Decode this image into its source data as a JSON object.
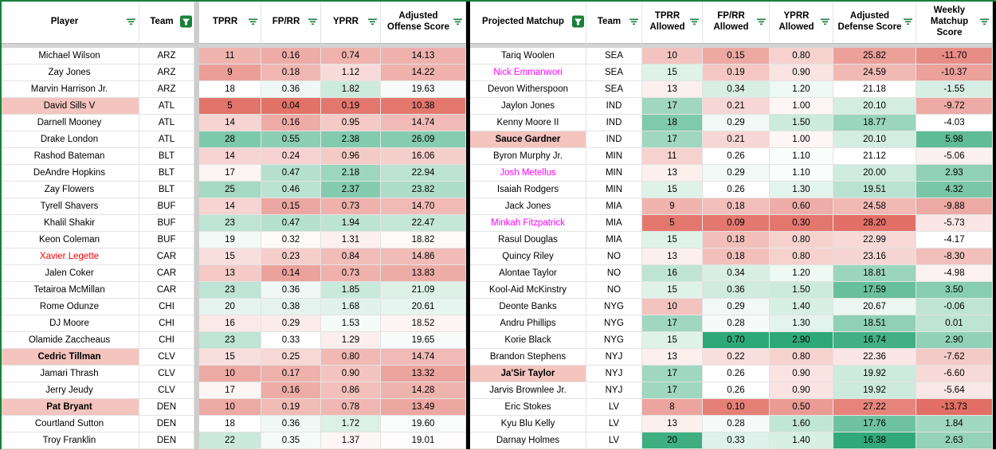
{
  "sheet": {
    "colors": {
      "neg": "#e0685e",
      "pos": "#2fa878",
      "mid": "#ffffff",
      "highlight": "#f4c4bf",
      "filter_green": "#188038",
      "grid": "#e3e3e3",
      "divider_gray": "#cdcdcd",
      "border_black": "#000000",
      "red_text": "#ff0000",
      "magenta_text": "#ff00ff"
    },
    "left_table": {
      "headers": [
        {
          "label": "Player",
          "filter": "inactive"
        },
        {
          "label": "Team",
          "filter": "active"
        },
        {
          "label": "TPRR",
          "filter": "inactive"
        },
        {
          "label": "FP/RR",
          "filter": "inactive"
        },
        {
          "label": "YPRR",
          "filter": "inactive"
        },
        {
          "label": "Adjusted Offense Score",
          "filter": "inactive"
        }
      ],
      "scales": [
        {
          "min": 4,
          "mid": 18,
          "max": 34
        },
        {
          "min": 0.02,
          "mid": 0.33,
          "max": 0.73
        },
        {
          "min": 0.05,
          "mid": 1.45,
          "max": 3.0
        },
        {
          "min": 9.4,
          "mid": 19.2,
          "max": 31
        }
      ],
      "rows": [
        {
          "name": "Michael Wilson",
          "team": "ARZ",
          "vals": [
            "11",
            "0.16",
            "0.74",
            "14.13"
          ]
        },
        {
          "name": "Zay Jones",
          "team": "ARZ",
          "vals": [
            "9",
            "0.18",
            "1.12",
            "14.22"
          ]
        },
        {
          "name": "Marvin Harrison Jr.",
          "team": "ARZ",
          "vals": [
            "18",
            "0.36",
            "1.82",
            "19.63"
          ]
        },
        {
          "name": "David Sills V",
          "team": "ATL",
          "vals": [
            "5",
            "0.04",
            "0.19",
            "10.38"
          ],
          "highlight": true
        },
        {
          "name": "Darnell Mooney",
          "team": "ATL",
          "vals": [
            "14",
            "0.16",
            "0.95",
            "14.74"
          ]
        },
        {
          "name": "Drake London",
          "team": "ATL",
          "vals": [
            "28",
            "0.55",
            "2.38",
            "26.09"
          ]
        },
        {
          "name": "Rashod Bateman",
          "team": "BLT",
          "vals": [
            "14",
            "0.24",
            "0.96",
            "16.06"
          ]
        },
        {
          "name": "DeAndre Hopkins",
          "team": "BLT",
          "vals": [
            "17",
            "0.47",
            "2.18",
            "22.94"
          ]
        },
        {
          "name": "Zay Flowers",
          "team": "BLT",
          "vals": [
            "25",
            "0.46",
            "2.37",
            "23.82"
          ]
        },
        {
          "name": "Tyrell Shavers",
          "team": "BUF",
          "vals": [
            "14",
            "0.15",
            "0.73",
            "14.70"
          ]
        },
        {
          "name": "Khalil Shakir",
          "team": "BUF",
          "vals": [
            "23",
            "0.47",
            "1.94",
            "22.47"
          ]
        },
        {
          "name": "Keon Coleman",
          "team": "BUF",
          "vals": [
            "19",
            "0.32",
            "1.31",
            "18.82"
          ]
        },
        {
          "name": "Xavier Legette",
          "team": "CAR",
          "vals": [
            "15",
            "0.23",
            "0.84",
            "14.86"
          ],
          "text": "red"
        },
        {
          "name": "Jalen Coker",
          "team": "CAR",
          "vals": [
            "13",
            "0.14",
            "0.73",
            "13.83"
          ]
        },
        {
          "name": "Tetairoa McMillan",
          "team": "CAR",
          "vals": [
            "23",
            "0.36",
            "1.85",
            "21.09"
          ]
        },
        {
          "name": "Rome Odunze",
          "team": "CHI",
          "vals": [
            "20",
            "0.38",
            "1.68",
            "20.61"
          ]
        },
        {
          "name": "DJ Moore",
          "team": "CHI",
          "vals": [
            "16",
            "0.29",
            "1.53",
            "18.52"
          ]
        },
        {
          "name": "Olamide Zaccheaus",
          "team": "CHI",
          "vals": [
            "23",
            "0.33",
            "1.29",
            "19.65"
          ]
        },
        {
          "name": "Cedric Tillman",
          "team": "CLV",
          "vals": [
            "15",
            "0.25",
            "0.80",
            "14.74"
          ],
          "bold": true,
          "highlight": true
        },
        {
          "name": "Jamari Thrash",
          "team": "CLV",
          "vals": [
            "10",
            "0.17",
            "0.90",
            "13.32"
          ]
        },
        {
          "name": "Jerry Jeudy",
          "team": "CLV",
          "vals": [
            "17",
            "0.16",
            "0.86",
            "14.28"
          ]
        },
        {
          "name": "Pat Bryant",
          "team": "DEN",
          "vals": [
            "10",
            "0.19",
            "0.78",
            "13.49"
          ],
          "bold": true,
          "highlight": true
        },
        {
          "name": "Courtland Sutton",
          "team": "DEN",
          "vals": [
            "18",
            "0.36",
            "1.72",
            "19.60"
          ]
        },
        {
          "name": "Troy Franklin",
          "team": "DEN",
          "vals": [
            "22",
            "0.35",
            "1.37",
            "19.01"
          ]
        }
      ]
    },
    "right_table": {
      "headers": [
        {
          "label": "Projected Matchup",
          "filter": "active"
        },
        {
          "label": "Team",
          "filter": "inactive"
        },
        {
          "label": "TPRR Allowed",
          "filter": "inactive"
        },
        {
          "label": "FP/RR Allowed",
          "filter": "inactive"
        },
        {
          "label": "YPRR Allowed",
          "filter": "inactive"
        },
        {
          "label": "Adjusted Defense Score",
          "filter": "inactive"
        },
        {
          "label": "Weekly Matchup Score",
          "filter": "inactive"
        }
      ],
      "scales": [
        {
          "min": 4,
          "mid": 14,
          "max": 20.5
        },
        {
          "min": 0.07,
          "mid": 0.26,
          "max": 0.7
        },
        {
          "min": 0.22,
          "mid": 1.05,
          "max": 2.9
        },
        {
          "min": 16.3,
          "mid": 21.1,
          "max": 28.6,
          "reverse": true
        },
        {
          "min": -14.2,
          "mid": -4.1,
          "max": 9
        }
      ],
      "rows": [
        {
          "name": "Tariq Woolen",
          "team": "SEA",
          "vals": [
            "10",
            "0.15",
            "0.80",
            "25.82",
            "-11.70"
          ]
        },
        {
          "name": "Nick Emmanwori",
          "team": "SEA",
          "vals": [
            "15",
            "0.19",
            "0.90",
            "24.59",
            "-10.37"
          ],
          "text": "magenta"
        },
        {
          "name": "Devon Witherspoon",
          "team": "SEA",
          "vals": [
            "13",
            "0.34",
            "1.20",
            "21.18",
            "-1.55"
          ]
        },
        {
          "name": "Jaylon Jones",
          "team": "IND",
          "vals": [
            "17",
            "0.21",
            "1.00",
            "20.10",
            "-9.72"
          ]
        },
        {
          "name": "Kenny Moore II",
          "team": "IND",
          "vals": [
            "18",
            "0.29",
            "1.50",
            "18.77",
            "-4.03"
          ]
        },
        {
          "name": "Sauce Gardner",
          "team": "IND",
          "vals": [
            "17",
            "0.21",
            "1.00",
            "20.10",
            "5.98"
          ],
          "bold": true,
          "highlight": true
        },
        {
          "name": "Byron Murphy Jr.",
          "team": "MIN",
          "vals": [
            "11",
            "0.26",
            "1.10",
            "21.12",
            "-5.06"
          ]
        },
        {
          "name": "Josh Metellus",
          "team": "MIN",
          "vals": [
            "13",
            "0.29",
            "1.10",
            "20.00",
            "2.93"
          ],
          "text": "magenta"
        },
        {
          "name": "Isaiah Rodgers",
          "team": "MIN",
          "vals": [
            "15",
            "0.26",
            "1.30",
            "19.51",
            "4.32"
          ]
        },
        {
          "name": "Jack Jones",
          "team": "MIA",
          "vals": [
            "9",
            "0.18",
            "0.60",
            "24.58",
            "-9.88"
          ]
        },
        {
          "name": "Minkah Fitzpatrick",
          "team": "MIA",
          "vals": [
            "5",
            "0.09",
            "0.30",
            "28.20",
            "-5.73"
          ],
          "text": "magenta"
        },
        {
          "name": "Rasul Douglas",
          "team": "MIA",
          "vals": [
            "15",
            "0.18",
            "0.80",
            "22.99",
            "-4.17"
          ]
        },
        {
          "name": "Quincy Riley",
          "team": "NO",
          "vals": [
            "13",
            "0.18",
            "0.80",
            "23.16",
            "-8.30"
          ]
        },
        {
          "name": "Alontae Taylor",
          "team": "NO",
          "vals": [
            "16",
            "0.34",
            "1.20",
            "18.81",
            "-4.98"
          ]
        },
        {
          "name": "Kool-Aid McKinstry",
          "team": "NO",
          "vals": [
            "15",
            "0.36",
            "1.50",
            "17.59",
            "3.50"
          ]
        },
        {
          "name": "Deonte Banks",
          "team": "NYG",
          "vals": [
            "10",
            "0.29",
            "1.40",
            "20.67",
            "-0.06"
          ]
        },
        {
          "name": "Andru Phillips",
          "team": "NYG",
          "vals": [
            "17",
            "0.28",
            "1.30",
            "18.51",
            "0.01"
          ]
        },
        {
          "name": "Korie Black",
          "team": "NYG",
          "vals": [
            "15",
            "0.70",
            "2.90",
            "16.74",
            "2.90"
          ]
        },
        {
          "name": "Brandon Stephens",
          "team": "NYJ",
          "vals": [
            "13",
            "0.22",
            "0.80",
            "22.36",
            "-7.62"
          ]
        },
        {
          "name": "Ja'Sir Taylor",
          "team": "NYJ",
          "vals": [
            "17",
            "0.26",
            "0.90",
            "19.92",
            "-6.60"
          ],
          "bold": true,
          "highlight": true
        },
        {
          "name": "Jarvis Brownlee Jr.",
          "team": "NYJ",
          "vals": [
            "17",
            "0.26",
            "0.90",
            "19.92",
            "-5.64"
          ]
        },
        {
          "name": "Eric Stokes",
          "team": "LV",
          "vals": [
            "8",
            "0.10",
            "0.50",
            "27.22",
            "-13.73"
          ]
        },
        {
          "name": "Kyu Blu Kelly",
          "team": "LV",
          "vals": [
            "13",
            "0.28",
            "1.60",
            "17.76",
            "1.84"
          ]
        },
        {
          "name": "Darnay Holmes",
          "team": "LV",
          "vals": [
            "20",
            "0.33",
            "1.40",
            "16.38",
            "2.63"
          ]
        }
      ]
    }
  }
}
